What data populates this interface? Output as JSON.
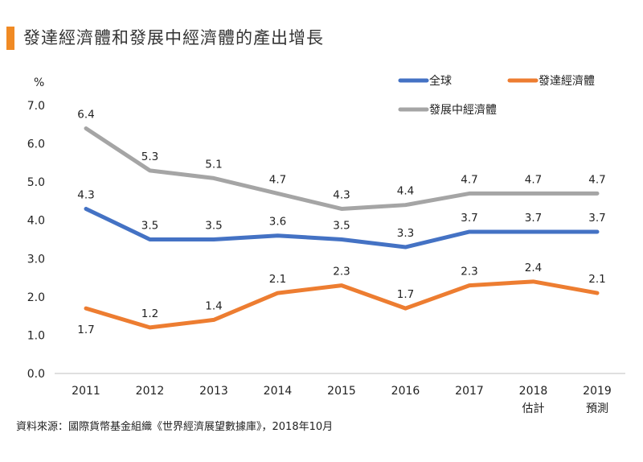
{
  "title": "發達經濟體和發展中經濟體的產出增長",
  "source": "資料來源：國際貨幣基金組織《世界經濟展望數據庫》，2018年10月",
  "chart_data": {
    "type": "line",
    "ylabel": "%",
    "ylim": [
      0,
      7
    ],
    "yticks": [
      "0.0",
      "1.0",
      "2.0",
      "3.0",
      "4.0",
      "5.0",
      "6.0",
      "7.0"
    ],
    "categories": [
      "2011",
      "2012",
      "2013",
      "2014",
      "2015",
      "2016",
      "2017",
      "2018",
      "2019"
    ],
    "category_sublabels": [
      "",
      "",
      "",
      "",
      "",
      "",
      "",
      "估計",
      "預測"
    ],
    "legend_position": "top-right",
    "series": [
      {
        "name": "全球",
        "color": "#4472c4",
        "values": [
          4.3,
          3.5,
          3.5,
          3.6,
          3.5,
          3.3,
          3.7,
          3.7,
          3.7
        ],
        "labels": [
          "4.3",
          "3.5",
          "3.5",
          "3.6",
          "3.5",
          "3.3",
          "3.7",
          "3.7",
          "3.7"
        ],
        "label_pos": [
          "above",
          "above",
          "above",
          "above",
          "above",
          "above",
          "above",
          "above",
          "above"
        ]
      },
      {
        "name": "發達經濟體",
        "color": "#ed7d31",
        "values": [
          1.7,
          1.2,
          1.4,
          2.1,
          2.3,
          1.7,
          2.3,
          2.4,
          2.1
        ],
        "labels": [
          "1.7",
          "1.2",
          "1.4",
          "2.1",
          "2.3",
          "1.7",
          "2.3",
          "2.4",
          "2.1"
        ],
        "label_pos": [
          "below",
          "above",
          "above",
          "above",
          "above",
          "above",
          "above",
          "above",
          "above"
        ]
      },
      {
        "name": "發展中經濟體",
        "color": "#a5a5a5",
        "values": [
          6.4,
          5.3,
          5.1,
          4.7,
          4.3,
          4.4,
          4.7,
          4.7,
          4.7
        ],
        "labels": [
          "6.4",
          "5.3",
          "5.1",
          "4.7",
          "4.3",
          "4.4",
          "4.7",
          "4.7",
          "4.7"
        ],
        "label_pos": [
          "above",
          "above",
          "above",
          "above",
          "above",
          "above",
          "above",
          "above",
          "above"
        ]
      }
    ]
  }
}
